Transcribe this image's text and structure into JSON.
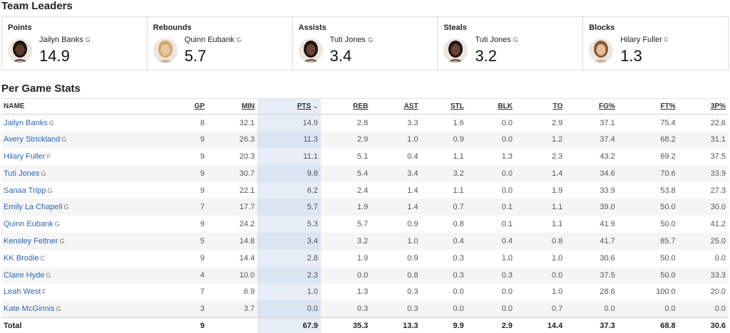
{
  "team_leaders": {
    "title": "Team Leaders",
    "cards": [
      {
        "category": "Points",
        "player": "Jailyn Banks",
        "pos": "G",
        "value": "14.9",
        "skin": "#5a3a28",
        "hair": "#1e1410"
      },
      {
        "category": "Rebounds",
        "player": "Quinn Eubank",
        "pos": "G",
        "value": "5.7",
        "skin": "#e9c5a6",
        "hair": "#d3a868"
      },
      {
        "category": "Assists",
        "player": "Tuti Jones",
        "pos": "G",
        "value": "3.4",
        "skin": "#6b4330",
        "hair": "#1e1410"
      },
      {
        "category": "Steals",
        "player": "Tuti Jones",
        "pos": "G",
        "value": "3.2",
        "skin": "#6b4330",
        "hair": "#1e1410"
      },
      {
        "category": "Blocks",
        "player": "Hilary Fuller",
        "pos": "F",
        "value": "1.3",
        "skin": "#e6bd9c",
        "hair": "#8a5a34"
      }
    ]
  },
  "per_game": {
    "title": "Per Game Stats",
    "headers": [
      "NAME",
      "GP",
      "MIN",
      "PTS",
      "REB",
      "AST",
      "STL",
      "BLK",
      "TO",
      "FG%",
      "FT%",
      "3P%"
    ],
    "rows": [
      {
        "name": "Jailyn Banks",
        "pos": "G",
        "gp": "8",
        "min": "32.1",
        "pts": "14.9",
        "reb": "2.8",
        "ast": "3.3",
        "stl": "1.6",
        "blk": "0.0",
        "to": "2.9",
        "fg": "37.1",
        "ft": "75.4",
        "tp": "22.6"
      },
      {
        "name": "Avery Strickland",
        "pos": "G",
        "gp": "9",
        "min": "26.3",
        "pts": "11.3",
        "reb": "2.9",
        "ast": "1.0",
        "stl": "0.9",
        "blk": "0.0",
        "to": "1.2",
        "fg": "37.4",
        "ft": "68.2",
        "tp": "31.1"
      },
      {
        "name": "Hilary Fuller",
        "pos": "F",
        "gp": "9",
        "min": "20.3",
        "pts": "11.1",
        "reb": "5.1",
        "ast": "0.4",
        "stl": "1.1",
        "blk": "1.3",
        "to": "2.3",
        "fg": "43.2",
        "ft": "69.2",
        "tp": "37.5"
      },
      {
        "name": "Tuti Jones",
        "pos": "G",
        "gp": "9",
        "min": "30.7",
        "pts": "9.8",
        "reb": "5.4",
        "ast": "3.4",
        "stl": "3.2",
        "blk": "0.0",
        "to": "1.4",
        "fg": "34.6",
        "ft": "70.6",
        "tp": "33.9"
      },
      {
        "name": "Sanaa Tripp",
        "pos": "G",
        "gp": "9",
        "min": "22.1",
        "pts": "6.2",
        "reb": "2.4",
        "ast": "1.4",
        "stl": "1.1",
        "blk": "0.0",
        "to": "1.9",
        "fg": "33.9",
        "ft": "53.8",
        "tp": "27.3"
      },
      {
        "name": "Emily La Chapell",
        "pos": "G",
        "gp": "7",
        "min": "17.7",
        "pts": "5.7",
        "reb": "1.9",
        "ast": "1.4",
        "stl": "0.7",
        "blk": "0.1",
        "to": "1.1",
        "fg": "39.0",
        "ft": "50.0",
        "tp": "30.0"
      },
      {
        "name": "Quinn Eubank",
        "pos": "G",
        "gp": "9",
        "min": "24.2",
        "pts": "5.3",
        "reb": "5.7",
        "ast": "0.9",
        "stl": "0.8",
        "blk": "0.1",
        "to": "1.1",
        "fg": "41.9",
        "ft": "50.0",
        "tp": "41.2"
      },
      {
        "name": "Kensley Feltner",
        "pos": "G",
        "gp": "5",
        "min": "14.8",
        "pts": "3.4",
        "reb": "3.2",
        "ast": "1.0",
        "stl": "0.4",
        "blk": "0.4",
        "to": "0.8",
        "fg": "41.7",
        "ft": "85.7",
        "tp": "25.0"
      },
      {
        "name": "KK Brodie",
        "pos": "C",
        "gp": "9",
        "min": "14.4",
        "pts": "2.8",
        "reb": "1.9",
        "ast": "0.9",
        "stl": "0.3",
        "blk": "1.0",
        "to": "1.0",
        "fg": "30.6",
        "ft": "50.0",
        "tp": "0.0"
      },
      {
        "name": "Claire Hyde",
        "pos": "G",
        "gp": "4",
        "min": "10.0",
        "pts": "2.3",
        "reb": "0.0",
        "ast": "0.8",
        "stl": "0.3",
        "blk": "0.3",
        "to": "0.0",
        "fg": "37.5",
        "ft": "50.0",
        "tp": "33.3"
      },
      {
        "name": "Leah West",
        "pos": "F",
        "gp": "7",
        "min": "6.9",
        "pts": "1.0",
        "reb": "1.3",
        "ast": "0.3",
        "stl": "0.0",
        "blk": "0.0",
        "to": "1.0",
        "fg": "28.6",
        "ft": "100.0",
        "tp": "20.0"
      },
      {
        "name": "Kate McGinnis",
        "pos": "G",
        "gp": "3",
        "min": "3.7",
        "pts": "0.0",
        "reb": "0.3",
        "ast": "0.3",
        "stl": "0.0",
        "blk": "0.0",
        "to": "0.7",
        "fg": "0.0",
        "ft": "0.0",
        "tp": "0.0"
      }
    ],
    "total": {
      "name": "Total",
      "gp": "9",
      "min": "",
      "pts": "67.9",
      "reb": "35.3",
      "ast": "13.3",
      "stl": "9.9",
      "blk": "2.9",
      "to": "14.4",
      "fg": "37.3",
      "ft": "68.8",
      "tp": "30.6"
    },
    "sorted_column": "PTS",
    "colors": {
      "link": "#2f66b3",
      "highlight": "#e6edf7"
    }
  }
}
